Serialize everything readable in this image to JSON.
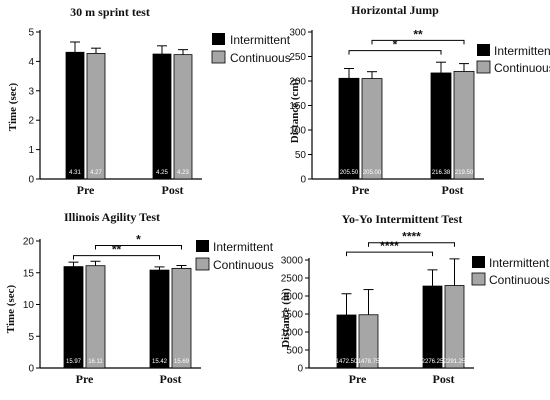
{
  "colors": {
    "intermittent": "#000000",
    "continuous": "#a6a6a6",
    "axis": "#000000"
  },
  "legend": {
    "position": "top-right"
  },
  "chart_data": [
    {
      "type": "bar",
      "title": "30 m sprint test",
      "ylabel": "Time (sec)",
      "xlabel": "",
      "ylim": [
        0,
        5
      ],
      "yticks": [
        "0",
        "1",
        "2",
        "3",
        "4",
        "5"
      ],
      "categories": [
        "Pre",
        "Post"
      ],
      "series": [
        {
          "name": "Intermittent",
          "values": [
            4.31,
            4.25
          ],
          "errors": [
            0.35,
            0.28
          ],
          "labels": [
            "4.31",
            "4.25"
          ]
        },
        {
          "name": "Continuous",
          "values": [
            4.27,
            4.23
          ],
          "errors": [
            0.18,
            0.17
          ],
          "labels": [
            "4.27",
            "4.23"
          ]
        }
      ],
      "significance": []
    },
    {
      "type": "bar",
      "title": "Horizontal Jump",
      "ylabel": "Distance (cm)",
      "xlabel": "",
      "ylim": [
        0,
        300
      ],
      "yticks": [
        "0",
        "50",
        "100",
        "150",
        "200",
        "250",
        "300"
      ],
      "categories": [
        "Pre",
        "Post"
      ],
      "series": [
        {
          "name": "Intermittent",
          "values": [
            205.5,
            216.38
          ],
          "errors": [
            20,
            22
          ],
          "labels": [
            "205.50",
            "216.38"
          ]
        },
        {
          "name": "Continuous",
          "values": [
            205.0,
            219.5
          ],
          "errors": [
            14,
            16
          ],
          "labels": [
            "205.00",
            "219.50"
          ]
        }
      ],
      "significance": [
        {
          "from": [
            0,
            0
          ],
          "to": [
            1,
            0
          ],
          "label": "*",
          "y": 262
        },
        {
          "from": [
            0,
            1
          ],
          "to": [
            1,
            1
          ],
          "label": "**",
          "y": 283
        }
      ]
    },
    {
      "type": "bar",
      "title": "Illinois Agility Test",
      "ylabel": "Time (sec)",
      "xlabel": "",
      "ylim": [
        0,
        20
      ],
      "yticks": [
        "0",
        "5",
        "10",
        "15",
        "20"
      ],
      "categories": [
        "Pre",
        "Post"
      ],
      "series": [
        {
          "name": "Intermittent",
          "values": [
            15.97,
            15.42
          ],
          "errors": [
            0.7,
            0.5
          ],
          "labels": [
            "15.97",
            "15.42"
          ]
        },
        {
          "name": "Continuous",
          "values": [
            16.11,
            15.69
          ],
          "errors": [
            0.7,
            0.45
          ],
          "labels": [
            "16.11",
            "15.69"
          ]
        }
      ],
      "significance": [
        {
          "from": [
            0,
            0
          ],
          "to": [
            1,
            0
          ],
          "label": "**",
          "y": 17.7
        },
        {
          "from": [
            0,
            1
          ],
          "to": [
            1,
            1
          ],
          "label": "*",
          "y": 19.3
        }
      ]
    },
    {
      "type": "bar",
      "title": "Yo-Yo Intermittent Test",
      "ylabel": "Distance (m)",
      "xlabel": "",
      "ylim": [
        0,
        3000
      ],
      "yticks": [
        "0",
        "500",
        "1000",
        "1500",
        "2000",
        "2500",
        "3000"
      ],
      "categories": [
        "Pre",
        "Post"
      ],
      "series": [
        {
          "name": "Intermittent",
          "values": [
            1472.5,
            2276.25
          ],
          "errors": [
            590,
            450
          ],
          "labels": [
            "1472.50",
            "2276.25"
          ]
        },
        {
          "name": "Continuous",
          "values": [
            1478.75,
            2291.25
          ],
          "errors": [
            700,
            740
          ],
          "labels": [
            "1478.75",
            "2291.25"
          ]
        }
      ],
      "significance": [
        {
          "from": [
            0,
            0
          ],
          "to": [
            1,
            0
          ],
          "label": "****",
          "y": 3220
        },
        {
          "from": [
            0,
            1
          ],
          "to": [
            1,
            1
          ],
          "label": "****",
          "y": 3480
        }
      ]
    }
  ]
}
